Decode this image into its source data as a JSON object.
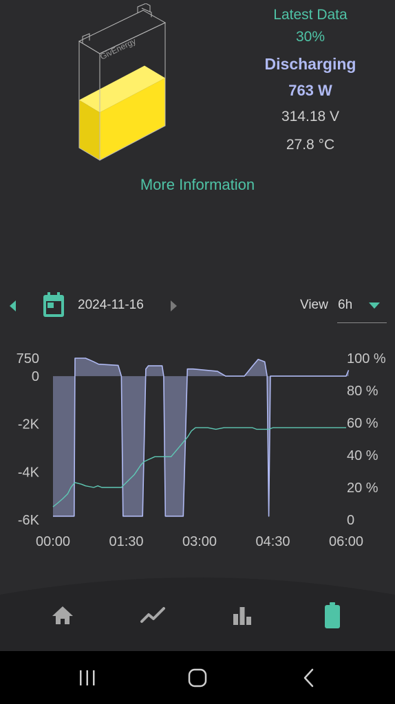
{
  "battery": {
    "brand_label": "GivEnergy",
    "fill_fraction": 0.3,
    "fill_color": "#ffe21f"
  },
  "latest": {
    "title": "Latest Data",
    "percent": "30%",
    "state": "Discharging",
    "power": "763 W",
    "voltage": "314.18 V",
    "temperature": "27.8 °C"
  },
  "more_info_label": "More Information",
  "date_picker": {
    "date": "2024-11-16",
    "view_label": "View",
    "view_value": "6h"
  },
  "colors": {
    "accent": "#4fc3a6",
    "power_line": "#b0baf3",
    "soc_line": "#5fc9b5",
    "background": "#2b2b2d"
  },
  "chart_data": {
    "type": "line",
    "x_ticks": [
      "00:00",
      "01:30",
      "03:00",
      "04:30",
      "06:00"
    ],
    "x_range_minutes": [
      0,
      360
    ],
    "y_left": {
      "ticks": [
        "750",
        "0",
        "-2K",
        "-4K",
        "-6K"
      ],
      "tick_values": [
        750,
        0,
        -2000,
        -4000,
        -6000
      ],
      "range": [
        -6000,
        750
      ],
      "unit": "W"
    },
    "y_right": {
      "ticks": [
        "100 %",
        "80 %",
        "60 %",
        "40 %",
        "20 %",
        "0"
      ],
      "tick_values": [
        100,
        80,
        60,
        40,
        20,
        0
      ],
      "range": [
        0,
        100
      ]
    },
    "series": [
      {
        "axis": "left",
        "color": "#b0baf3",
        "fill": true,
        "points": [
          [
            0,
            -5850
          ],
          [
            26,
            -5850
          ],
          [
            27,
            750
          ],
          [
            40,
            750
          ],
          [
            50,
            600
          ],
          [
            56,
            500
          ],
          [
            80,
            450
          ],
          [
            84,
            0
          ],
          [
            86,
            -5850
          ],
          [
            110,
            -5850
          ],
          [
            114,
            300
          ],
          [
            117,
            430
          ],
          [
            134,
            430
          ],
          [
            136,
            0
          ],
          [
            138,
            -5850
          ],
          [
            160,
            -5850
          ],
          [
            165,
            300
          ],
          [
            172,
            300
          ],
          [
            202,
            200
          ],
          [
            212,
            0
          ],
          [
            235,
            0
          ],
          [
            245,
            420
          ],
          [
            252,
            700
          ],
          [
            260,
            600
          ],
          [
            263,
            0
          ],
          [
            265,
            -5850
          ],
          [
            267,
            0
          ],
          [
            360,
            0
          ],
          [
            363,
            250
          ]
        ]
      },
      {
        "axis": "right",
        "color": "#5fc9b5",
        "fill": false,
        "points": [
          [
            0,
            8
          ],
          [
            5,
            10
          ],
          [
            12,
            13
          ],
          [
            18,
            16
          ],
          [
            22,
            20
          ],
          [
            25,
            22
          ],
          [
            27,
            23
          ],
          [
            35,
            22
          ],
          [
            40,
            21
          ],
          [
            50,
            20
          ],
          [
            55,
            21
          ],
          [
            60,
            20
          ],
          [
            70,
            20
          ],
          [
            80,
            20
          ],
          [
            84,
            20
          ],
          [
            88,
            22
          ],
          [
            94,
            25
          ],
          [
            100,
            28
          ],
          [
            104,
            31
          ],
          [
            108,
            34
          ],
          [
            112,
            36
          ],
          [
            116,
            37
          ],
          [
            125,
            39
          ],
          [
            130,
            39
          ],
          [
            140,
            39
          ],
          [
            145,
            39
          ],
          [
            150,
            42
          ],
          [
            155,
            45
          ],
          [
            160,
            48
          ],
          [
            165,
            51
          ],
          [
            170,
            55
          ],
          [
            175,
            57
          ],
          [
            180,
            57
          ],
          [
            190,
            57
          ],
          [
            200,
            56
          ],
          [
            210,
            57
          ],
          [
            220,
            57
          ],
          [
            245,
            57
          ],
          [
            250,
            56
          ],
          [
            265,
            56
          ],
          [
            270,
            57
          ],
          [
            290,
            57
          ],
          [
            300,
            57
          ],
          [
            330,
            57
          ],
          [
            360,
            57
          ]
        ]
      }
    ]
  },
  "nav": {
    "items": [
      {
        "icon": "home-icon"
      },
      {
        "icon": "trend-icon"
      },
      {
        "icon": "bar-chart-icon"
      },
      {
        "icon": "battery-icon",
        "active": true
      }
    ]
  },
  "system_nav": {
    "items": [
      "recents-icon",
      "home-circle-icon",
      "back-icon"
    ]
  }
}
